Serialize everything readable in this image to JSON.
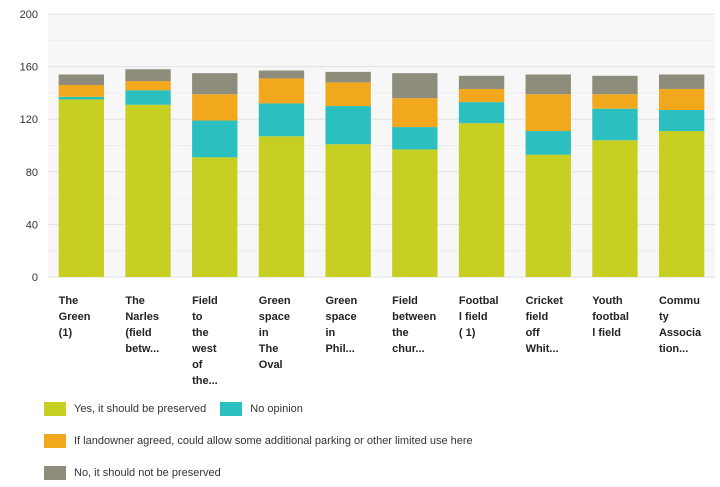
{
  "chart_data": {
    "type": "bar",
    "stacked": true,
    "categories": [
      [
        "The",
        "Green",
        "(1)"
      ],
      [
        "The",
        "Narles",
        "(field",
        "betw..."
      ],
      [
        "Field",
        "to",
        "the",
        "west",
        "of",
        "the..."
      ],
      [
        "Green",
        "space",
        "in",
        "The",
        "Oval"
      ],
      [
        "Green",
        "space",
        "in",
        "Phil..."
      ],
      [
        "Field",
        "between",
        "the",
        "chur..."
      ],
      [
        "Footbal",
        "l field",
        "( 1)"
      ],
      [
        "Cricket",
        "field",
        "off",
        "Whit..."
      ],
      [
        "Youth",
        "footbal",
        "l field"
      ],
      [
        "Commu",
        "ty",
        "Associa",
        "tion..."
      ]
    ],
    "series": [
      {
        "name": "Yes, it should be preserved",
        "color": "#c7cf22",
        "values": [
          135,
          131,
          91,
          107,
          101,
          97,
          117,
          93,
          104,
          111
        ]
      },
      {
        "name": "No opinion",
        "color": "#2bbfc0",
        "values": [
          2,
          11,
          28,
          25,
          29,
          17,
          16,
          18,
          24,
          16
        ]
      },
      {
        "name": "If landowner agreed, could allow some additional parking or other limited use here",
        "color": "#f2a81d",
        "values": [
          9,
          7,
          20,
          19,
          18,
          22,
          10,
          28,
          11,
          16
        ]
      },
      {
        "name": "No, it should not be preserved",
        "color": "#8e8c7a",
        "values": [
          8,
          9,
          16,
          6,
          8,
          19,
          10,
          15,
          14,
          11
        ]
      }
    ],
    "ylim": [
      0,
      200
    ],
    "yticks": [
      0,
      40,
      80,
      120,
      160,
      200
    ],
    "grid": true,
    "legend_position": "bottom-left"
  }
}
